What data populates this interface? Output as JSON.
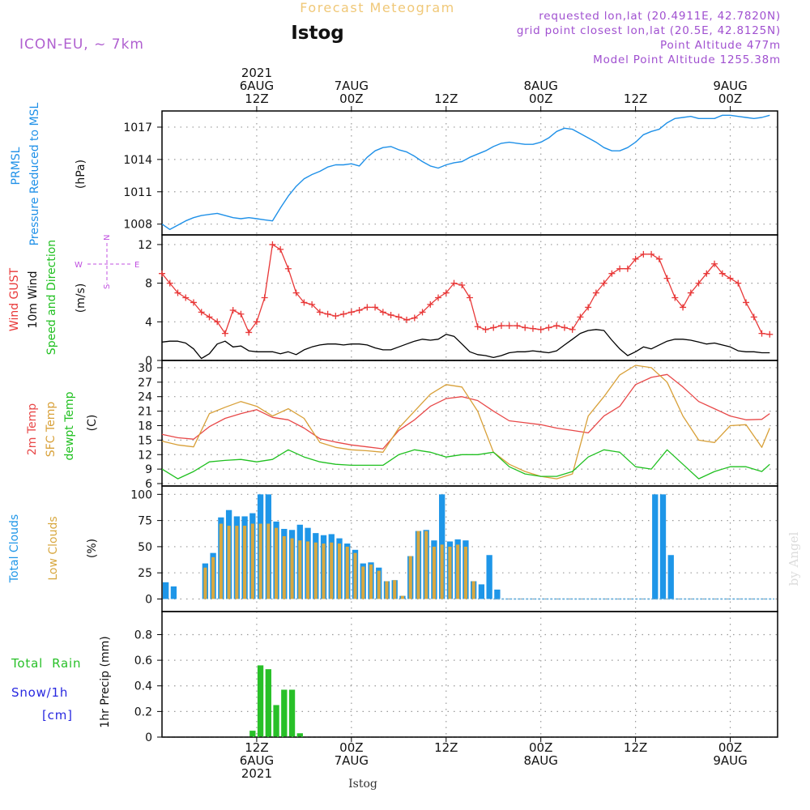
{
  "header": {
    "top_title": "Forecast Meteogram",
    "station": "Istog",
    "model": "ICON-EU, ~ 7km",
    "info_lines": [
      "requested lon,lat (20.4911E, 42.7820N)",
      "grid point closest lon,lat (20.5E, 42.8125N)",
      "Point Altitude 477m",
      "Model Point Altitude 1255.38m"
    ],
    "watermark": "by Angel",
    "bottom_label": "Istog"
  },
  "colors": {
    "pressure": "#1e90e8",
    "gust": "#e83838",
    "wind": "#000000",
    "temp2m": "#e84848",
    "sfc": "#d8a038",
    "dewpt": "#20c020",
    "total_clouds": "#1e96e8",
    "low_clouds": "#d8a840",
    "rain": "#28c028",
    "snow": "#2828e0",
    "model_text": "#b060d0",
    "info_text": "#a050d0",
    "title_text": "#f0c878"
  },
  "time_axis": {
    "top": [
      {
        "hour": 12,
        "lines": [
          "2021",
          "6AUG",
          "12Z"
        ]
      },
      {
        "hour": 24,
        "lines": [
          "7AUG",
          "00Z"
        ]
      },
      {
        "hour": 36,
        "lines": [
          "12Z"
        ]
      },
      {
        "hour": 48,
        "lines": [
          "8AUG",
          "00Z"
        ]
      },
      {
        "hour": 60,
        "lines": [
          "12Z"
        ]
      },
      {
        "hour": 72,
        "lines": [
          "9AUG",
          "00Z"
        ]
      }
    ],
    "bottom": [
      {
        "hour": 12,
        "lines": [
          "12Z",
          "6AUG",
          "2021"
        ]
      },
      {
        "hour": 24,
        "lines": [
          "00Z",
          "7AUG"
        ]
      },
      {
        "hour": 36,
        "lines": [
          "12Z"
        ]
      },
      {
        "hour": 48,
        "lines": [
          "00Z",
          "8AUG"
        ]
      },
      {
        "hour": 60,
        "lines": [
          "12Z"
        ]
      },
      {
        "hour": 72,
        "lines": [
          "00Z",
          "9AUG"
        ]
      }
    ]
  },
  "panels": {
    "pressure": {
      "labels": [
        {
          "text": "PRMSL",
          "color": "#1e90e8"
        },
        {
          "text": "Pressure Reduced to MSL",
          "color": "#1e90e8"
        }
      ],
      "unit": "(hPa)",
      "ticks": [
        "1008",
        "1011",
        "1014",
        "1017"
      ]
    },
    "wind": {
      "labels": [
        {
          "text": "Wind GUST",
          "color": "#e83838"
        },
        {
          "text": "10m Wind",
          "color": "#000000"
        },
        {
          "text": "Speed and Direction",
          "color": "#20c020"
        }
      ],
      "unit": "(m/s)",
      "ticks": [
        "0",
        "4",
        "8",
        "12"
      ],
      "compass": {
        "n": "N",
        "s": "S",
        "w": "W",
        "e": "E"
      }
    },
    "temp": {
      "labels": [
        {
          "text": "2m Temp",
          "color": "#e84848"
        },
        {
          "text": "SFC Temp",
          "color": "#d8a038"
        },
        {
          "text": "dewpt Temp",
          "color": "#20c020"
        }
      ],
      "unit": "(C)",
      "ticks": [
        "6",
        "9",
        "12",
        "15",
        "18",
        "21",
        "24",
        "27",
        "30"
      ]
    },
    "clouds": {
      "labels": [
        {
          "text": "Total Clouds",
          "color": "#1e96e8"
        },
        {
          "text": "Low Clouds",
          "color": "#d8a840"
        }
      ],
      "unit": "(%)",
      "ticks": [
        "0",
        "25",
        "50",
        "75",
        "100"
      ]
    },
    "precip": {
      "labels": [
        {
          "text": "Total  Rain",
          "color": "#28c028"
        },
        {
          "text": "Snow/1h",
          "color": "#2828e0"
        },
        {
          "text": "[cm]",
          "color": "#2828e0"
        }
      ],
      "unit": "1hr Precip (mm)",
      "ticks": [
        "0",
        "0.2",
        "0.4",
        "0.6",
        "0.8"
      ]
    }
  },
  "chart_data": {
    "type": "line",
    "x_unit": "hours from 2021-08-06 00Z",
    "xlim": [
      0,
      78
    ],
    "pressure": {
      "ylim": [
        1007,
        1018.5
      ],
      "x": [
        0,
        1,
        2,
        3,
        4,
        5,
        6,
        7,
        8,
        9,
        10,
        11,
        12,
        13,
        14,
        15,
        16,
        17,
        18,
        19,
        20,
        21,
        22,
        23,
        24,
        25,
        26,
        27,
        28,
        29,
        30,
        31,
        32,
        33,
        34,
        35,
        36,
        37,
        38,
        39,
        40,
        41,
        42,
        43,
        44,
        45,
        46,
        47,
        48,
        49,
        50,
        51,
        52,
        53,
        54,
        55,
        56,
        57,
        58,
        59,
        60,
        61,
        62,
        63,
        64,
        65,
        66,
        67,
        68,
        69,
        70,
        71,
        72,
        73,
        74,
        75,
        76,
        77
      ],
      "y": [
        1008.0,
        1007.5,
        1007.9,
        1008.3,
        1008.6,
        1008.8,
        1008.9,
        1009.0,
        1008.8,
        1008.6,
        1008.5,
        1008.6,
        1008.5,
        1008.4,
        1008.3,
        1009.5,
        1010.6,
        1011.5,
        1012.2,
        1012.6,
        1012.9,
        1013.3,
        1013.5,
        1013.5,
        1013.6,
        1013.4,
        1014.2,
        1014.8,
        1015.1,
        1015.2,
        1014.9,
        1014.7,
        1014.3,
        1013.8,
        1013.4,
        1013.2,
        1013.5,
        1013.7,
        1013.8,
        1014.2,
        1014.5,
        1014.8,
        1015.2,
        1015.5,
        1015.6,
        1015.5,
        1015.4,
        1015.4,
        1015.6,
        1016.0,
        1016.6,
        1016.9,
        1016.8,
        1016.4,
        1016.0,
        1015.6,
        1015.1,
        1014.8,
        1014.8,
        1015.1,
        1015.6,
        1016.3,
        1016.6,
        1016.8,
        1017.4,
        1017.8,
        1017.9,
        1018.0,
        1017.8,
        1017.8,
        1017.8,
        1018.1,
        1018.1,
        1018.0,
        1017.9,
        1017.8,
        1017.9,
        1018.1
      ]
    },
    "gust": {
      "ylim": [
        0,
        13
      ],
      "x": [
        0,
        1,
        2,
        3,
        4,
        5,
        6,
        7,
        8,
        9,
        10,
        11,
        12,
        13,
        14,
        15,
        16,
        17,
        18,
        19,
        20,
        21,
        22,
        23,
        24,
        25,
        26,
        27,
        28,
        29,
        30,
        31,
        32,
        33,
        34,
        35,
        36,
        37,
        38,
        39,
        40,
        41,
        42,
        43,
        44,
        45,
        46,
        47,
        48,
        49,
        50,
        51,
        52,
        53,
        54,
        55,
        56,
        57,
        58,
        59,
        60,
        61,
        62,
        63,
        64,
        65,
        66,
        67,
        68,
        69,
        70,
        71,
        72,
        73,
        74,
        75,
        76,
        77
      ],
      "y": [
        9.0,
        8.0,
        7.0,
        6.5,
        6.0,
        5.0,
        4.5,
        4.0,
        2.8,
        5.2,
        4.8,
        2.9,
        4.0,
        6.5,
        12.0,
        11.5,
        9.5,
        7.0,
        6.0,
        5.8,
        5.0,
        4.8,
        4.6,
        4.8,
        5.0,
        5.2,
        5.5,
        5.5,
        5.0,
        4.7,
        4.5,
        4.2,
        4.4,
        5.0,
        5.8,
        6.5,
        7.0,
        8.0,
        7.8,
        6.5,
        3.5,
        3.2,
        3.4,
        3.6,
        3.6,
        3.6,
        3.4,
        3.3,
        3.2,
        3.4,
        3.6,
        3.4,
        3.2,
        4.5,
        5.5,
        7.0,
        8.0,
        9.0,
        9.5,
        9.5,
        10.5,
        11.0,
        11.0,
        10.5,
        8.5,
        6.5,
        5.5,
        7.0,
        8.0,
        9.0,
        10.0,
        9.0,
        8.5,
        8.0,
        6.0,
        4.5,
        2.8,
        2.7
      ]
    },
    "wind10m": {
      "x": [
        0,
        1,
        2,
        3,
        4,
        5,
        6,
        7,
        8,
        9,
        10,
        11,
        12,
        13,
        14,
        15,
        16,
        17,
        18,
        19,
        20,
        21,
        22,
        23,
        24,
        25,
        26,
        27,
        28,
        29,
        30,
        31,
        32,
        33,
        34,
        35,
        36,
        37,
        38,
        39,
        40,
        41,
        42,
        43,
        44,
        45,
        46,
        47,
        48,
        49,
        50,
        51,
        52,
        53,
        54,
        55,
        56,
        57,
        58,
        59,
        60,
        61,
        62,
        63,
        64,
        65,
        66,
        67,
        68,
        69,
        70,
        71,
        72,
        73,
        74,
        75,
        76,
        77
      ],
      "y": [
        1.9,
        2.0,
        2.0,
        1.8,
        1.2,
        0.2,
        0.7,
        1.7,
        2.0,
        1.4,
        1.5,
        1.0,
        0.9,
        0.9,
        0.9,
        0.7,
        0.9,
        0.6,
        1.1,
        1.4,
        1.6,
        1.7,
        1.7,
        1.6,
        1.7,
        1.7,
        1.6,
        1.3,
        1.1,
        1.1,
        1.4,
        1.7,
        2.0,
        2.2,
        2.1,
        2.2,
        2.7,
        2.5,
        1.7,
        0.9,
        0.6,
        0.5,
        0.3,
        0.5,
        0.8,
        0.9,
        0.9,
        1.0,
        0.9,
        0.8,
        1.0,
        1.6,
        2.2,
        2.8,
        3.1,
        3.2,
        3.1,
        2.1,
        1.2,
        0.5,
        0.9,
        1.4,
        1.2,
        1.6,
        2.0,
        2.2,
        2.2,
        2.1,
        1.9,
        1.7,
        1.8,
        1.6,
        1.4,
        1.0,
        0.9,
        0.9,
        0.8,
        0.8
      ]
    },
    "temp": {
      "ylim": [
        5.5,
        31.5
      ],
      "x": [
        0,
        2,
        4,
        6,
        8,
        10,
        12,
        14,
        16,
        18,
        20,
        22,
        24,
        26,
        28,
        30,
        32,
        34,
        36,
        38,
        40,
        42,
        44,
        46,
        48,
        50,
        52,
        54,
        56,
        58,
        60,
        62,
        64,
        66,
        68,
        70,
        72,
        74,
        76,
        77
      ],
      "t2m": [
        16.2,
        15.5,
        15.2,
        17.8,
        19.5,
        20.5,
        21.3,
        19.7,
        19.2,
        17.5,
        15.3,
        14.6,
        14.0,
        13.6,
        13.2,
        17.0,
        19.2,
        22.0,
        23.6,
        24.0,
        23.2,
        21.0,
        19.0,
        18.6,
        18.2,
        17.5,
        17.0,
        16.5,
        20.0,
        22.0,
        26.5,
        28.0,
        28.6,
        26.0,
        23.0,
        21.5,
        20.0,
        19.2,
        19.3,
        20.5
      ],
      "sfc": [
        14.8,
        14.0,
        13.6,
        20.5,
        21.8,
        23.0,
        22.0,
        20.0,
        21.5,
        19.5,
        14.5,
        13.5,
        13.0,
        12.8,
        12.5,
        17.5,
        21.0,
        24.5,
        26.5,
        26.0,
        21.0,
        12.5,
        10.0,
        8.5,
        7.5,
        7.0,
        8.0,
        20.0,
        24.0,
        28.5,
        30.5,
        30.0,
        27.0,
        20.0,
        15.0,
        14.5,
        18.0,
        18.2,
        13.5,
        17.5
      ],
      "dewpt": [
        9.0,
        7.0,
        8.5,
        10.5,
        10.8,
        11.0,
        10.5,
        11.0,
        13.0,
        11.5,
        10.5,
        10.0,
        9.8,
        9.8,
        9.8,
        12.0,
        13.0,
        12.5,
        11.5,
        12.0,
        12.0,
        12.5,
        9.5,
        8.0,
        7.5,
        7.5,
        8.5,
        11.5,
        13.0,
        12.5,
        9.5,
        9.0,
        13.0,
        10.0,
        7.0,
        8.5,
        9.5,
        9.5,
        8.5,
        10.0
      ]
    },
    "clouds": {
      "ylim": [
        0,
        100
      ],
      "x": [
        0,
        1,
        2,
        3,
        4,
        5,
        6,
        7,
        8,
        9,
        10,
        11,
        12,
        13,
        14,
        15,
        16,
        17,
        18,
        19,
        20,
        21,
        22,
        23,
        24,
        25,
        26,
        27,
        28,
        29,
        30,
        31,
        32,
        33,
        34,
        35,
        36,
        37,
        38,
        39,
        40,
        41,
        42,
        43,
        44,
        45,
        46,
        47,
        48,
        49,
        50,
        51,
        52,
        53,
        54,
        55,
        56,
        57,
        58,
        59,
        60,
        61,
        62,
        63,
        64,
        65,
        66,
        67,
        68,
        69,
        70,
        71,
        72,
        73,
        74,
        75,
        76,
        77
      ],
      "total": [
        16,
        12,
        0,
        0,
        0,
        34,
        44,
        78,
        85,
        79,
        79,
        82,
        100,
        100,
        74,
        67,
        66,
        71,
        68,
        63,
        61,
        62,
        58,
        53,
        47,
        34,
        35,
        30,
        17,
        18,
        3,
        41,
        65,
        66,
        56,
        100,
        55,
        57,
        56,
        17,
        14,
        42,
        9,
        0,
        0,
        0,
        0,
        0,
        0,
        0,
        0,
        0,
        0,
        0,
        0,
        0,
        0,
        0,
        0,
        0,
        0,
        0,
        100,
        100,
        42,
        0,
        0,
        0,
        0,
        0,
        0,
        0,
        0,
        0,
        0,
        0,
        0,
        0
      ],
      "low": [
        0,
        0,
        0,
        0,
        0,
        30,
        40,
        72,
        70,
        70,
        70,
        72,
        72,
        72,
        68,
        60,
        58,
        56,
        55,
        54,
        53,
        54,
        53,
        50,
        44,
        31,
        33,
        27,
        17,
        18,
        3,
        41,
        65,
        65,
        50,
        52,
        50,
        52,
        50,
        17,
        0,
        0,
        0,
        0,
        0,
        0,
        0,
        0,
        0,
        0,
        0,
        0,
        0,
        0,
        0,
        0,
        0,
        0,
        0,
        0,
        0,
        0,
        0,
        0,
        0,
        0,
        0,
        0,
        0,
        0,
        0,
        0,
        0,
        0,
        0,
        0,
        0,
        0
      ]
    },
    "precip": {
      "ylim": [
        0,
        0.98
      ],
      "x": [
        11,
        12,
        13,
        14,
        15,
        16,
        17
      ],
      "rain": [
        0.05,
        0.56,
        0.53,
        0.25,
        0.37,
        0.37,
        0.03
      ]
    }
  }
}
